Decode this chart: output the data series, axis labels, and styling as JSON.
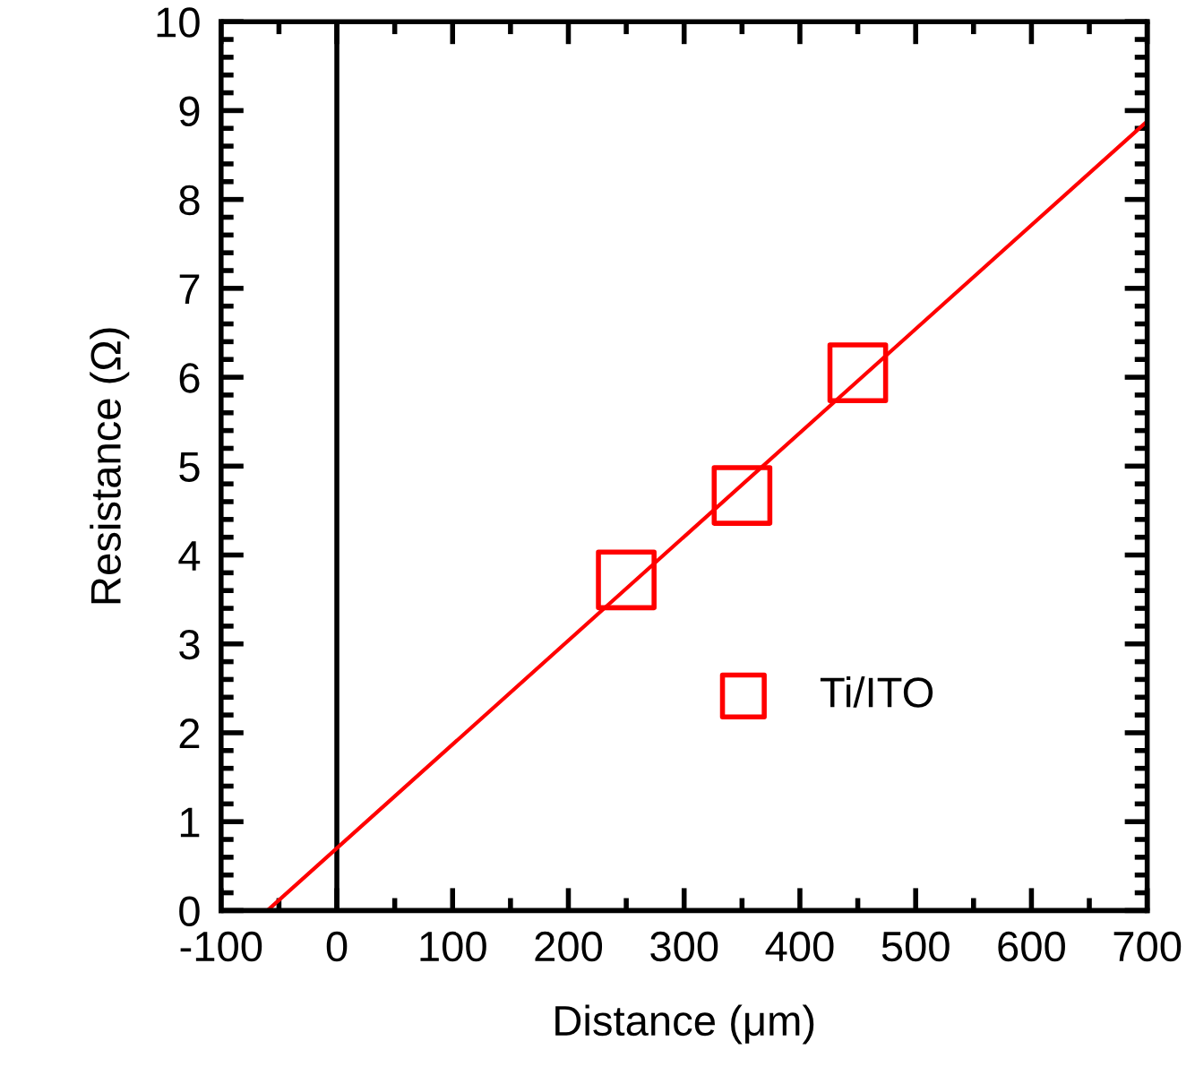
{
  "chart_data": {
    "type": "scatter",
    "xlabel": "Distance (μm)",
    "ylabel": "Resistance (Ω)",
    "xlim": [
      -100,
      700
    ],
    "xticks": [
      -100,
      0,
      100,
      200,
      300,
      400,
      500,
      600,
      700
    ],
    "ylim": [
      0,
      10
    ],
    "yticks": [
      0,
      1,
      2,
      3,
      4,
      5,
      6,
      7,
      8,
      9,
      10
    ],
    "series": [
      {
        "name": "Ti/ITO",
        "color": "#ff0000",
        "marker": "square",
        "x": [
          250,
          350,
          450
        ],
        "values": [
          3.72,
          4.67,
          6.05
        ]
      },
      {
        "type": "line",
        "color": "#ff0000",
        "x": [
          -60,
          700
        ],
        "values": [
          0,
          8.88
        ]
      }
    ],
    "ref_lines": [
      {
        "axis": "x",
        "value": 0,
        "color": "#000000"
      }
    ],
    "grid": false,
    "legend": "bottom right"
  }
}
